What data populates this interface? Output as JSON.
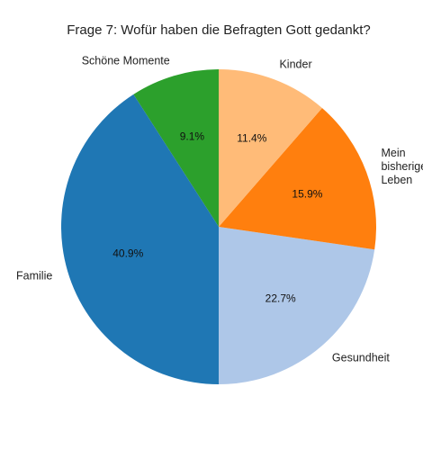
{
  "chart_data": {
    "type": "pie",
    "title": "Frage 7: Wofür haben die Befragten Gott gedankt?",
    "categories": [
      "Schöne Momente",
      "Familie",
      "Gesundheit",
      "Mein bisheriges Leben",
      "Kinder"
    ],
    "category_lines": [
      [
        "Schöne Momente"
      ],
      [
        "Familie"
      ],
      [
        "Gesundheit"
      ],
      [
        "Mein",
        "bisheriges",
        "Leben"
      ],
      [
        "Kinder"
      ]
    ],
    "values": [
      9.1,
      40.9,
      22.7,
      15.9,
      11.4
    ],
    "percent_labels": [
      "9.1%",
      "40.9%",
      "22.7%",
      "15.9%",
      "11.4%"
    ],
    "colors": [
      "#2ca02c",
      "#1f77b4",
      "#aec7e8",
      "#ff7f0e",
      "#ffbb78"
    ],
    "start_angle_deg": 90,
    "direction": "counterclockwise",
    "legend": "none"
  }
}
